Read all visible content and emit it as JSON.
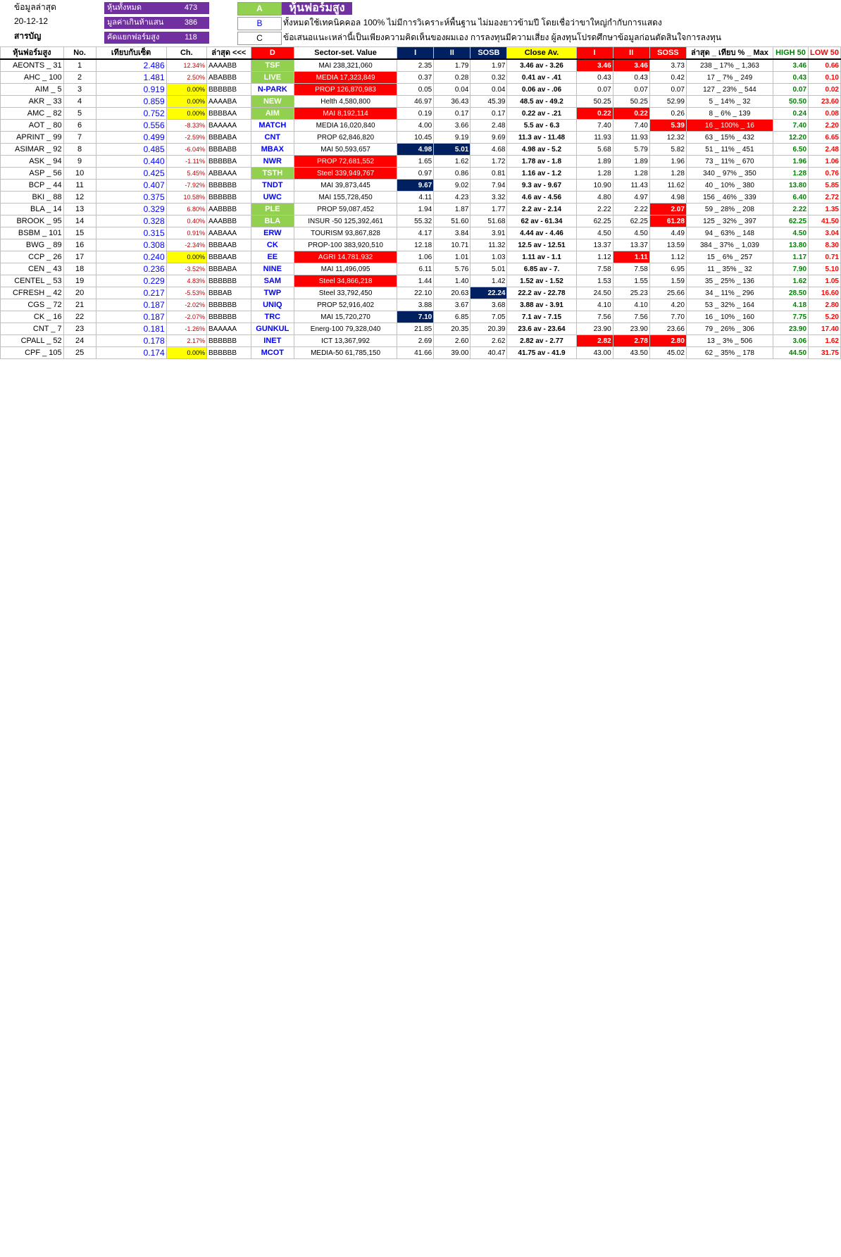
{
  "header": {
    "r1_left": "ข้อมูลล่าสุด",
    "r2_left": "20-12-12",
    "r3_left": "สารบัญ",
    "stat1_label": "หุ้นทั้งหมด",
    "stat1_value": "473",
    "stat2_label": "มูลค่าเกินห้าแสน",
    "stat2_value": "386",
    "stat3_label": "คัดแยกฟอร์มสูง",
    "stat3_value": "118",
    "letters": [
      "A",
      "B",
      "C",
      "D"
    ],
    "title": "หุ้นฟอร์มสูง",
    "note1": "ทั้งหมดใช้เทคนิคคอล 100% ไม่มีการวิเคราะห์พื้นฐาน ไม่มองยาวข้ามปี โดยเชื่อว่าขาใหญ่กำกับการแสดง",
    "note2": "ข้อเสนอแนะเหล่านี้เป็นเพียงความคิดเห็นของผมเอง การลงทุนมีความเสี่ยง ผู้ลงทุนโปรดศึกษาข้อมูลก่อนตัดสินใจการลงทุน"
  },
  "columns": [
    "หุ้นฟอร์มสูง",
    "No.",
    "เทียบกับเซ็ต",
    "Ch.",
    "ล่าสุด <<<",
    "D",
    "Sector-set. Value",
    "I",
    "II",
    "SOSB",
    "Close Av.",
    "I",
    "II",
    "SOSS",
    "ล่าสุด _ เทียบ % _ Max",
    "HIGH 50",
    "LOW 50"
  ],
  "rows": [
    {
      "name": "AEONTS _ 31",
      "no": "1",
      "score": "2.486",
      "ch": "12.34%",
      "pat": "AAAABB",
      "code": "TSF",
      "cg": 1,
      "sec": "MAI",
      "val": "238,321,060",
      "sr": 0,
      "i": "2.35",
      "ii": "1.79",
      "sosb": "1.97",
      "bh": "",
      "close": "3.46 av - 3.26",
      "ci": "3.46",
      "cii": "3.46",
      "soss": "3.73",
      "sh": "ri",
      "pct": "238 _ 17% _ 1,363",
      "ph": "",
      "hi": "3.46",
      "lo": "0.66"
    },
    {
      "name": "AHC _ 100",
      "no": "2",
      "score": "1.481",
      "ch": "2.50%",
      "pat": "ABABBB",
      "code": "LIVE",
      "cg": 1,
      "sec": "MEDIA",
      "val": "17,323,849",
      "sr": 1,
      "i": "0.37",
      "ii": "0.28",
      "sosb": "0.32",
      "bh": "",
      "close": "0.41 av - .41",
      "ci": "0.43",
      "cii": "0.43",
      "soss": "0.42",
      "sh": "",
      "pct": "17 _ 7% _ 249",
      "ph": "",
      "hi": "0.43",
      "lo": "0.10"
    },
    {
      "name": "AIM _ 5",
      "no": "3",
      "score": "0.919",
      "ch": "0.00%",
      "pat": "BBBBBB",
      "code": "N-PARK",
      "cg": 0,
      "sec": "PROP",
      "val": "126,870,983",
      "sr": 1,
      "i": "0.05",
      "ii": "0.04",
      "sosb": "0.04",
      "bh": "",
      "close": "0.06 av - .06",
      "ci": "0.07",
      "cii": "0.07",
      "soss": "0.07",
      "sh": "",
      "pct": "127 _ 23% _ 544",
      "ph": "",
      "hi": "0.07",
      "lo": "0.02"
    },
    {
      "name": "AKR _ 33",
      "no": "4",
      "score": "0.859",
      "ch": "0.00%",
      "pat": "AAAABA",
      "code": "NEW",
      "cg": 1,
      "sec": "Helth",
      "val": "4,580,800",
      "sr": 0,
      "i": "46.97",
      "ii": "36.43",
      "sosb": "45.39",
      "bh": "",
      "close": "48.5 av - 49.2",
      "ci": "50.25",
      "cii": "50.25",
      "soss": "52.99",
      "sh": "",
      "pct": "5 _ 14% _ 32",
      "ph": "",
      "hi": "50.50",
      "lo": "23.60"
    },
    {
      "name": "AMC _ 82",
      "no": "5",
      "score": "0.752",
      "ch": "0.00%",
      "pat": "BBBBAA",
      "code": "AIM",
      "cg": 1,
      "sec": "MAI",
      "val": "8,192,114",
      "sr": 1,
      "i": "0.19",
      "ii": "0.17",
      "sosb": "0.17",
      "bh": "",
      "close": "0.22 av - .21",
      "ci": "0.22",
      "cii": "0.22",
      "soss": "0.26",
      "sh": "ri",
      "pct": "8 _ 6% _ 139",
      "ph": "",
      "hi": "0.24",
      "lo": "0.08"
    },
    {
      "name": "AOT _ 80",
      "no": "6",
      "score": "0.556",
      "ch": "-8.33%",
      "pat": "BAAAAA",
      "code": "MATCH",
      "cg": 0,
      "sec": "MEDIA",
      "val": "16,020,840",
      "sr": 0,
      "i": "4.00",
      "ii": "3.66",
      "sosb": "2.48",
      "bh": "",
      "close": "5.5 av - 6.3",
      "ci": "7.40",
      "cii": "7.40",
      "soss": "5.39",
      "sh": "s",
      "pct": "16 _ 100% _ 16",
      "ph": "r",
      "hi": "7.40",
      "lo": "2.20"
    },
    {
      "name": "APRINT _ 99",
      "no": "7",
      "score": "0.499",
      "ch": "-2.59%",
      "pat": "BBBABA",
      "code": "CNT",
      "cg": 0,
      "sec": "PROP",
      "val": "62,846,820",
      "sr": 0,
      "i": "10.45",
      "ii": "9.19",
      "sosb": "9.69",
      "bh": "",
      "close": "11.3 av - 11.48",
      "ci": "11.93",
      "cii": "11.93",
      "soss": "12.32",
      "sh": "",
      "pct": "63 _ 15% _ 432",
      "ph": "",
      "hi": "12.20",
      "lo": "6.65"
    },
    {
      "name": "ASIMAR _ 92",
      "no": "8",
      "score": "0.485",
      "ch": "-6.04%",
      "pat": "BBBABB",
      "code": "MBAX",
      "cg": 0,
      "sec": "MAI",
      "val": "50,593,657",
      "sr": 0,
      "i": "4.98",
      "ii": "5.01",
      "sosb": "4.68",
      "bh": "ib",
      "close": "4.98 av - 5.2",
      "ci": "5.68",
      "cii": "5.79",
      "soss": "5.82",
      "sh": "",
      "pct": "51 _ 11% _ 451",
      "ph": "",
      "hi": "6.50",
      "lo": "2.48"
    },
    {
      "name": "ASK _ 94",
      "no": "9",
      "score": "0.440",
      "ch": "-1.11%",
      "pat": "BBBBBA",
      "code": "NWR",
      "cg": 0,
      "sec": "PROP",
      "val": "72,681,552",
      "sr": 1,
      "i": "1.65",
      "ii": "1.62",
      "sosb": "1.72",
      "bh": "",
      "close": "1.78 av - 1.8",
      "ci": "1.89",
      "cii": "1.89",
      "soss": "1.96",
      "sh": "",
      "pct": "73 _ 11% _ 670",
      "ph": "",
      "hi": "1.96",
      "lo": "1.06"
    },
    {
      "name": "ASP _ 56",
      "no": "10",
      "score": "0.425",
      "ch": "5.45%",
      "pat": "ABBAAA",
      "code": "TSTH",
      "cg": 1,
      "sec": "Steel",
      "val": "339,949,767",
      "sr": 1,
      "i": "0.97",
      "ii": "0.86",
      "sosb": "0.81",
      "bh": "",
      "close": "1.16 av - 1.2",
      "ci": "1.28",
      "cii": "1.28",
      "soss": "1.28",
      "sh": "",
      "pct": "340 _ 97% _ 350",
      "ph": "",
      "hi": "1.28",
      "lo": "0.76"
    },
    {
      "name": "BCP _ 44",
      "no": "11",
      "score": "0.407",
      "ch": "-7.92%",
      "pat": "BBBBBB",
      "code": "TNDT",
      "cg": 0,
      "sec": "MAI",
      "val": "39,873,445",
      "sr": 0,
      "i": "9.67",
      "ii": "9.02",
      "sosb": "7.94",
      "bh": "i",
      "close": "9.3 av - 9.67",
      "ci": "10.90",
      "cii": "11.43",
      "soss": "11.62",
      "sh": "",
      "pct": "40 _ 10% _ 380",
      "ph": "",
      "hi": "13.80",
      "lo": "5.85"
    },
    {
      "name": "BKI _ 88",
      "no": "12",
      "score": "0.375",
      "ch": "10.58%",
      "pat": "BBBBBB",
      "code": "UWC",
      "cg": 0,
      "sec": "MAI",
      "val": "155,728,450",
      "sr": 0,
      "i": "4.11",
      "ii": "4.23",
      "sosb": "3.32",
      "bh": "",
      "close": "4.6 av - 4.56",
      "ci": "4.80",
      "cii": "4.97",
      "soss": "4.98",
      "sh": "",
      "pct": "156 _ 46% _ 339",
      "ph": "",
      "hi": "6.40",
      "lo": "2.72"
    },
    {
      "name": "BLA _ 14",
      "no": "13",
      "score": "0.329",
      "ch": "6.80%",
      "pat": "AABBBB",
      "code": "PLE",
      "cg": 1,
      "sec": "PROP",
      "val": "59,087,452",
      "sr": 0,
      "i": "1.94",
      "ii": "1.87",
      "sosb": "1.77",
      "bh": "",
      "close": "2.2 av - 2.14",
      "ci": "2.22",
      "cii": "2.22",
      "soss": "2.07",
      "sh": "s",
      "pct": "59 _ 28% _ 208",
      "ph": "",
      "hi": "2.22",
      "lo": "1.35"
    },
    {
      "name": "BROOK _ 95",
      "no": "14",
      "score": "0.328",
      "ch": "0.40%",
      "pat": "AAABBB",
      "code": "BLA",
      "cg": 1,
      "sec": "INSUR -50",
      "val": "125,392,461",
      "sr": 0,
      "i": "55.32",
      "ii": "51.60",
      "sosb": "51.68",
      "bh": "",
      "close": "62 av - 61.34",
      "ci": "62.25",
      "cii": "62.25",
      "soss": "61.28",
      "sh": "s",
      "pct": "125 _ 32% _ 397",
      "ph": "",
      "hi": "62.25",
      "lo": "41.50"
    },
    {
      "name": "BSBM _ 101",
      "no": "15",
      "score": "0.315",
      "ch": "0.91%",
      "pat": "AABAAA",
      "code": "ERW",
      "cg": 0,
      "sec": "TOURISM",
      "val": "93,867,828",
      "sr": 0,
      "i": "4.17",
      "ii": "3.84",
      "sosb": "3.91",
      "bh": "",
      "close": "4.44 av - 4.46",
      "ci": "4.50",
      "cii": "4.50",
      "soss": "4.49",
      "sh": "",
      "pct": "94 _ 63% _ 148",
      "ph": "",
      "hi": "4.50",
      "lo": "3.04"
    },
    {
      "name": "BWG _ 89",
      "no": "16",
      "score": "0.308",
      "ch": "-2.34%",
      "pat": "BBBAAB",
      "code": "CK",
      "cg": 0,
      "sec": "PROP-100",
      "val": "383,920,510",
      "sr": 0,
      "i": "12.18",
      "ii": "10.71",
      "sosb": "11.32",
      "bh": "",
      "close": "12.5 av - 12.51",
      "ci": "13.37",
      "cii": "13.37",
      "soss": "13.59",
      "sh": "",
      "pct": "384 _ 37% _ 1,039",
      "ph": "",
      "hi": "13.80",
      "lo": "8.30"
    },
    {
      "name": "CCP _ 26",
      "no": "17",
      "score": "0.240",
      "ch": "0.00%",
      "pat": "BBBAAB",
      "code": "EE",
      "cg": 0,
      "sec": "AGRI",
      "val": "14,781,932",
      "sr": 1,
      "i": "1.06",
      "ii": "1.01",
      "sosb": "1.03",
      "bh": "",
      "close": "1.11 av - 1.1",
      "ci": "1.12",
      "cii": "1.11",
      "soss": "1.12",
      "sh": "ii",
      "pct": "15 _ 6% _ 257",
      "ph": "",
      "hi": "1.17",
      "lo": "0.71"
    },
    {
      "name": "CEN _ 43",
      "no": "18",
      "score": "0.236",
      "ch": "-3.52%",
      "pat": "BBBABA",
      "code": "NINE",
      "cg": 0,
      "sec": "MAI",
      "val": "11,496,095",
      "sr": 0,
      "i": "6.11",
      "ii": "5.76",
      "sosb": "5.01",
      "bh": "",
      "close": "6.85 av - 7.",
      "ci": "7.58",
      "cii": "7.58",
      "soss": "6.95",
      "sh": "",
      "pct": "11 _ 35% _ 32",
      "ph": "",
      "hi": "7.90",
      "lo": "5.10"
    },
    {
      "name": "CENTEL _ 53",
      "no": "19",
      "score": "0.229",
      "ch": "4.83%",
      "pat": "BBBBBB",
      "code": "SAM",
      "cg": 0,
      "sec": "Steel",
      "val": "34,866,218",
      "sr": 1,
      "i": "1.44",
      "ii": "1.40",
      "sosb": "1.42",
      "bh": "",
      "close": "1.52 av - 1.52",
      "ci": "1.53",
      "cii": "1.55",
      "soss": "1.59",
      "sh": "",
      "pct": "35 _ 25% _ 136",
      "ph": "",
      "hi": "1.62",
      "lo": "1.05"
    },
    {
      "name": "CFRESH _ 42",
      "no": "20",
      "score": "0.217",
      "ch": "-5.53%",
      "pat": "BBBAB",
      "code": "TWP",
      "cg": 0,
      "sec": "Steel",
      "val": "33,792,450",
      "sr": 0,
      "i": "22.10",
      "ii": "20.63",
      "sosb": "22.24",
      "bh": "s",
      "close": "22.2 av - 22.78",
      "ci": "24.50",
      "cii": "25.23",
      "soss": "25.66",
      "sh": "",
      "pct": "34 _ 11% _ 296",
      "ph": "",
      "hi": "28.50",
      "lo": "16.60"
    },
    {
      "name": "CGS _ 72",
      "no": "21",
      "score": "0.187",
      "ch": "-2.02%",
      "pat": "BBBBBB",
      "code": "UNIQ",
      "cg": 0,
      "sec": "PROP",
      "val": "52,916,402",
      "sr": 0,
      "i": "3.88",
      "ii": "3.67",
      "sosb": "3.68",
      "bh": "",
      "close": "3.88 av - 3.91",
      "ci": "4.10",
      "cii": "4.10",
      "soss": "4.20",
      "sh": "",
      "pct": "53 _ 32% _ 164",
      "ph": "",
      "hi": "4.18",
      "lo": "2.80"
    },
    {
      "name": "CK _ 16",
      "no": "22",
      "score": "0.187",
      "ch": "-2.07%",
      "pat": "BBBBBB",
      "code": "TRC",
      "cg": 0,
      "sec": "MAI",
      "val": "15,720,270",
      "sr": 0,
      "i": "7.10",
      "ii": "6.85",
      "sosb": "7.05",
      "bh": "i",
      "close": "7.1 av - 7.15",
      "ci": "7.56",
      "cii": "7.56",
      "soss": "7.70",
      "sh": "",
      "pct": "16 _ 10% _ 160",
      "ph": "",
      "hi": "7.75",
      "lo": "5.20"
    },
    {
      "name": "CNT _ 7",
      "no": "23",
      "score": "0.181",
      "ch": "-1.26%",
      "pat": "BAAAAA",
      "code": "GUNKUL",
      "cg": 0,
      "sec": "Energ-100",
      "val": "79,328,040",
      "sr": 0,
      "i": "21.85",
      "ii": "20.35",
      "sosb": "20.39",
      "bh": "",
      "close": "23.6 av - 23.64",
      "ci": "23.90",
      "cii": "23.90",
      "soss": "23.66",
      "sh": "",
      "pct": "79 _ 26% _ 306",
      "ph": "",
      "hi": "23.90",
      "lo": "17.40"
    },
    {
      "name": "CPALL _ 52",
      "no": "24",
      "score": "0.178",
      "ch": "2.17%",
      "pat": "BBBBBB",
      "code": "INET",
      "cg": 0,
      "sec": "ICT",
      "val": "13,367,992",
      "sr": 0,
      "i": "2.69",
      "ii": "2.60",
      "sosb": "2.62",
      "bh": "",
      "close": "2.82 av - 2.77",
      "ci": "2.82",
      "cii": "2.78",
      "soss": "2.80",
      "sh": "all",
      "pct": "13 _ 3% _ 506",
      "ph": "",
      "hi": "3.06",
      "lo": "1.62"
    },
    {
      "name": "CPF _ 105",
      "no": "25",
      "score": "0.174",
      "ch": "0.00%",
      "pat": "BBBBBB",
      "code": "MCOT",
      "cg": 0,
      "sec": "MEDIA-50",
      "val": "61,785,150",
      "sr": 0,
      "i": "41.66",
      "ii": "39.00",
      "sosb": "40.47",
      "bh": "",
      "close": "41.75 av - 41.9",
      "ci": "43.00",
      "cii": "43.50",
      "soss": "45.02",
      "sh": "",
      "pct": "62 _ 35% _ 178",
      "ph": "",
      "hi": "44.50",
      "lo": "31.75"
    }
  ]
}
